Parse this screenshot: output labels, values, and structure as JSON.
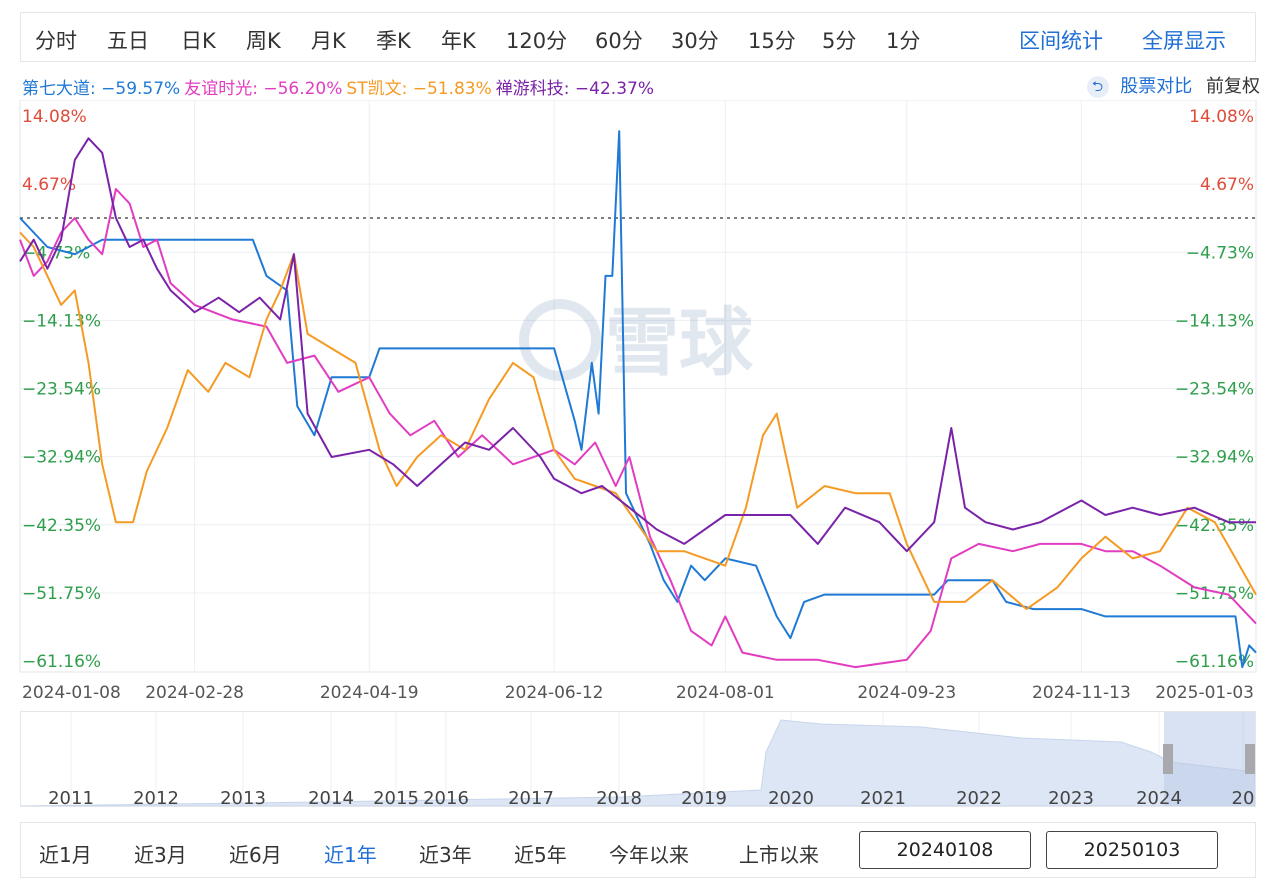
{
  "toolbar": {
    "periods": [
      "分时",
      "五日",
      "日K",
      "周K",
      "月K",
      "季K",
      "年K",
      "120分",
      "60分",
      "30分",
      "15分",
      "5分",
      "1分"
    ],
    "stats_label": "区间统计",
    "fullscreen_label": "全屏显示"
  },
  "legend": [
    {
      "name": "第七大道",
      "value": "-59.57%",
      "color": "#1f7ad6"
    },
    {
      "name": "友谊时光",
      "value": "-56.20%",
      "color": "#e23cc0"
    },
    {
      "name": "ST凯文",
      "value": "-51.83%",
      "color": "#f59a23"
    },
    {
      "name": "禅游科技",
      "value": "-42.37%",
      "color": "#7a23a8"
    }
  ],
  "compare": {
    "label": "股票对比",
    "adjust_label": "前复权",
    "icon": "swap-icon"
  },
  "watermark": "雪球",
  "chart_data": {
    "type": "line",
    "y_ticks": [
      "14.08%",
      "4.67%",
      "-4.73%",
      "-14.13%",
      "-23.54%",
      "-32.94%",
      "-42.35%",
      "-51.75%",
      "-61.16%"
    ],
    "x_ticks": [
      "2024-01-08",
      "2024-02-28",
      "2024-04-19",
      "2024-06-12",
      "2024-08-01",
      "2024-09-23",
      "2024-11-13",
      "2025-01-03"
    ],
    "ylim": [
      -61.16,
      14.08
    ],
    "xlim": [
      "2024-01-08",
      "2025-01-03"
    ],
    "baseline": 0,
    "grid": true,
    "series": [
      {
        "name": "第七大道",
        "color": "#1f7ad6",
        "points": [
          [
            "2024-01-08",
            0
          ],
          [
            "2024-01-16",
            -4
          ],
          [
            "2024-01-24",
            -5
          ],
          [
            "2024-02-01",
            -3
          ],
          [
            "2024-02-15",
            -3
          ],
          [
            "2024-02-28",
            -3
          ],
          [
            "2024-03-08",
            -3
          ],
          [
            "2024-03-16",
            -3
          ],
          [
            "2024-03-20",
            -8
          ],
          [
            "2024-03-26",
            -10
          ],
          [
            "2024-03-29",
            -26
          ],
          [
            "2024-04-03",
            -30
          ],
          [
            "2024-04-08",
            -22
          ],
          [
            "2024-04-19",
            -22
          ],
          [
            "2024-04-22",
            -18
          ],
          [
            "2024-05-10",
            -18
          ],
          [
            "2024-05-31",
            -18
          ],
          [
            "2024-06-12",
            -18
          ],
          [
            "2024-06-15",
            -23
          ],
          [
            "2024-06-18",
            -28
          ],
          [
            "2024-06-20",
            -32
          ],
          [
            "2024-06-23",
            -20
          ],
          [
            "2024-06-25",
            -27
          ],
          [
            "2024-06-27",
            -8
          ],
          [
            "2024-06-29",
            -8
          ],
          [
            "2024-07-01",
            12
          ],
          [
            "2024-07-03",
            -38
          ],
          [
            "2024-07-07",
            -42
          ],
          [
            "2024-07-10",
            -45
          ],
          [
            "2024-07-14",
            -50
          ],
          [
            "2024-07-18",
            -53
          ],
          [
            "2024-07-22",
            -48
          ],
          [
            "2024-07-26",
            -50
          ],
          [
            "2024-08-01",
            -47
          ],
          [
            "2024-08-10",
            -48
          ],
          [
            "2024-08-16",
            -55
          ],
          [
            "2024-08-20",
            -58
          ],
          [
            "2024-08-24",
            -53
          ],
          [
            "2024-08-30",
            -52
          ],
          [
            "2024-09-20",
            -52
          ],
          [
            "2024-10-01",
            -52
          ],
          [
            "2024-10-05",
            -50
          ],
          [
            "2024-10-18",
            -50
          ],
          [
            "2024-10-22",
            -53
          ],
          [
            "2024-10-30",
            -54
          ],
          [
            "2024-11-13",
            -54
          ],
          [
            "2024-11-20",
            -55
          ],
          [
            "2024-12-10",
            -55
          ],
          [
            "2024-12-28",
            -55
          ],
          [
            "2024-12-30",
            -62
          ],
          [
            "2025-01-01",
            -59
          ],
          [
            "2025-01-03",
            -60
          ]
        ]
      },
      {
        "name": "友谊时光",
        "color": "#e23cc0",
        "points": [
          [
            "2024-01-08",
            -3
          ],
          [
            "2024-01-12",
            -8
          ],
          [
            "2024-01-16",
            -6
          ],
          [
            "2024-01-20",
            -2
          ],
          [
            "2024-01-24",
            0
          ],
          [
            "2024-01-28",
            -3
          ],
          [
            "2024-02-01",
            -5
          ],
          [
            "2024-02-05",
            4
          ],
          [
            "2024-02-09",
            2
          ],
          [
            "2024-02-13",
            -4
          ],
          [
            "2024-02-17",
            -3
          ],
          [
            "2024-02-21",
            -9
          ],
          [
            "2024-02-28",
            -12
          ],
          [
            "2024-03-10",
            -14
          ],
          [
            "2024-03-20",
            -15
          ],
          [
            "2024-03-26",
            -20
          ],
          [
            "2024-04-03",
            -19
          ],
          [
            "2024-04-10",
            -24
          ],
          [
            "2024-04-19",
            -22
          ],
          [
            "2024-04-25",
            -27
          ],
          [
            "2024-05-01",
            -30
          ],
          [
            "2024-05-08",
            -28
          ],
          [
            "2024-05-15",
            -33
          ],
          [
            "2024-05-22",
            -30
          ],
          [
            "2024-05-31",
            -34
          ],
          [
            "2024-06-12",
            -32
          ],
          [
            "2024-06-18",
            -34
          ],
          [
            "2024-06-24",
            -31
          ],
          [
            "2024-06-30",
            -37
          ],
          [
            "2024-07-04",
            -33
          ],
          [
            "2024-07-10",
            -44
          ],
          [
            "2024-07-16",
            -50
          ],
          [
            "2024-07-22",
            -57
          ],
          [
            "2024-07-28",
            -59
          ],
          [
            "2024-08-01",
            -55
          ],
          [
            "2024-08-06",
            -60
          ],
          [
            "2024-08-16",
            -61
          ],
          [
            "2024-08-28",
            -61
          ],
          [
            "2024-09-08",
            -62
          ],
          [
            "2024-09-23",
            -61
          ],
          [
            "2024-09-30",
            -57
          ],
          [
            "2024-10-06",
            -47
          ],
          [
            "2024-10-14",
            -45
          ],
          [
            "2024-10-24",
            -46
          ],
          [
            "2024-11-01",
            -45
          ],
          [
            "2024-11-13",
            -45
          ],
          [
            "2024-11-20",
            -46
          ],
          [
            "2024-11-28",
            -46
          ],
          [
            "2024-12-06",
            -48
          ],
          [
            "2024-12-16",
            -51
          ],
          [
            "2024-12-26",
            -52
          ],
          [
            "2025-01-03",
            -56
          ]
        ]
      },
      {
        "name": "ST凯文",
        "color": "#f59a23",
        "points": [
          [
            "2024-01-08",
            -2
          ],
          [
            "2024-01-12",
            -4
          ],
          [
            "2024-01-16",
            -8
          ],
          [
            "2024-01-20",
            -12
          ],
          [
            "2024-01-24",
            -10
          ],
          [
            "2024-01-28",
            -20
          ],
          [
            "2024-02-01",
            -34
          ],
          [
            "2024-02-05",
            -42
          ],
          [
            "2024-02-10",
            -42
          ],
          [
            "2024-02-14",
            -35
          ],
          [
            "2024-02-20",
            -29
          ],
          [
            "2024-02-26",
            -21
          ],
          [
            "2024-03-03",
            -24
          ],
          [
            "2024-03-08",
            -20
          ],
          [
            "2024-03-15",
            -22
          ],
          [
            "2024-03-20",
            -14
          ],
          [
            "2024-03-24",
            -10
          ],
          [
            "2024-03-28",
            -5
          ],
          [
            "2024-04-01",
            -16
          ],
          [
            "2024-04-08",
            -18
          ],
          [
            "2024-04-15",
            -20
          ],
          [
            "2024-04-22",
            -32
          ],
          [
            "2024-04-27",
            -37
          ],
          [
            "2024-05-03",
            -33
          ],
          [
            "2024-05-10",
            -30
          ],
          [
            "2024-05-17",
            -32
          ],
          [
            "2024-05-24",
            -25
          ],
          [
            "2024-05-31",
            -20
          ],
          [
            "2024-06-06",
            -22
          ],
          [
            "2024-06-12",
            -32
          ],
          [
            "2024-06-18",
            -36
          ],
          [
            "2024-06-24",
            -37
          ],
          [
            "2024-06-30",
            -38
          ],
          [
            "2024-07-06",
            -42
          ],
          [
            "2024-07-12",
            -46
          ],
          [
            "2024-07-20",
            -46
          ],
          [
            "2024-08-01",
            -48
          ],
          [
            "2024-08-07",
            -40
          ],
          [
            "2024-08-12",
            -30
          ],
          [
            "2024-08-16",
            -27
          ],
          [
            "2024-08-22",
            -40
          ],
          [
            "2024-08-30",
            -37
          ],
          [
            "2024-09-08",
            -38
          ],
          [
            "2024-09-18",
            -38
          ],
          [
            "2024-09-23",
            -45
          ],
          [
            "2024-10-01",
            -53
          ],
          [
            "2024-10-10",
            -53
          ],
          [
            "2024-10-18",
            -50
          ],
          [
            "2024-10-28",
            -54
          ],
          [
            "2024-11-06",
            -51
          ],
          [
            "2024-11-13",
            -47
          ],
          [
            "2024-11-20",
            -44
          ],
          [
            "2024-11-28",
            -47
          ],
          [
            "2024-12-06",
            -46
          ],
          [
            "2024-12-14",
            -40
          ],
          [
            "2024-12-22",
            -42
          ],
          [
            "2024-12-28",
            -47
          ],
          [
            "2025-01-03",
            -52
          ]
        ]
      },
      {
        "name": "禅游科技",
        "color": "#7a23a8",
        "points": [
          [
            "2024-01-08",
            -6
          ],
          [
            "2024-01-12",
            -3
          ],
          [
            "2024-01-16",
            -7
          ],
          [
            "2024-01-20",
            -3
          ],
          [
            "2024-01-24",
            8
          ],
          [
            "2024-01-28",
            11
          ],
          [
            "2024-02-01",
            9
          ],
          [
            "2024-02-05",
            0
          ],
          [
            "2024-02-09",
            -4
          ],
          [
            "2024-02-13",
            -3
          ],
          [
            "2024-02-17",
            -7
          ],
          [
            "2024-02-21",
            -10
          ],
          [
            "2024-02-28",
            -13
          ],
          [
            "2024-03-06",
            -11
          ],
          [
            "2024-03-12",
            -13
          ],
          [
            "2024-03-18",
            -11
          ],
          [
            "2024-03-24",
            -14
          ],
          [
            "2024-03-28",
            -5
          ],
          [
            "2024-04-01",
            -27
          ],
          [
            "2024-04-08",
            -33
          ],
          [
            "2024-04-19",
            -32
          ],
          [
            "2024-04-26",
            -34
          ],
          [
            "2024-05-03",
            -37
          ],
          [
            "2024-05-10",
            -34
          ],
          [
            "2024-05-17",
            -31
          ],
          [
            "2024-05-24",
            -32
          ],
          [
            "2024-05-31",
            -29
          ],
          [
            "2024-06-08",
            -33
          ],
          [
            "2024-06-12",
            -36
          ],
          [
            "2024-06-20",
            -38
          ],
          [
            "2024-06-26",
            -37
          ],
          [
            "2024-07-04",
            -40
          ],
          [
            "2024-07-12",
            -43
          ],
          [
            "2024-07-20",
            -45
          ],
          [
            "2024-08-01",
            -41
          ],
          [
            "2024-08-10",
            -41
          ],
          [
            "2024-08-20",
            -41
          ],
          [
            "2024-08-28",
            -45
          ],
          [
            "2024-09-05",
            -40
          ],
          [
            "2024-09-15",
            -42
          ],
          [
            "2024-09-23",
            -46
          ],
          [
            "2024-10-01",
            -42
          ],
          [
            "2024-10-06",
            -29
          ],
          [
            "2024-10-10",
            -40
          ],
          [
            "2024-10-16",
            -42
          ],
          [
            "2024-10-24",
            -43
          ],
          [
            "2024-11-01",
            -42
          ],
          [
            "2024-11-13",
            -39
          ],
          [
            "2024-11-20",
            -41
          ],
          [
            "2024-11-28",
            -40
          ],
          [
            "2024-12-06",
            -41
          ],
          [
            "2024-12-16",
            -40
          ],
          [
            "2024-12-26",
            -42
          ],
          [
            "2025-01-03",
            -42
          ]
        ]
      }
    ]
  },
  "navigator": {
    "years": [
      "2011",
      "2012",
      "2013",
      "2014",
      "2015",
      "2016",
      "2017",
      "2018",
      "2019",
      "2020",
      "2021",
      "2022",
      "2023",
      "2024",
      "20"
    ]
  },
  "ranges": {
    "items": [
      "近1月",
      "近3月",
      "近6月",
      "近1年",
      "近3年",
      "近5年",
      "今年以来",
      "上市以来"
    ],
    "active": "近1年",
    "start_date": "20240108",
    "end_date": "20250103"
  }
}
